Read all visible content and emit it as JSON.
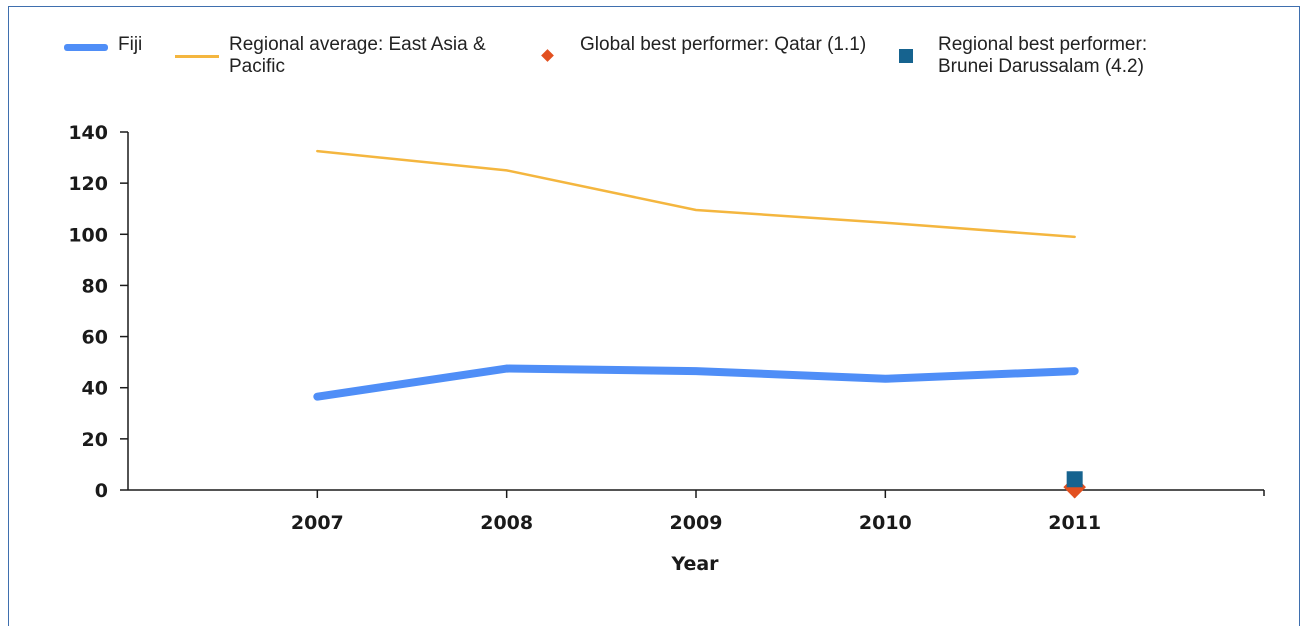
{
  "chart_data": {
    "type": "line",
    "x": [
      2007,
      2008,
      2009,
      2010,
      2011
    ],
    "xlabel": "Year",
    "ylabel": "",
    "ylim": [
      0,
      140
    ],
    "yticks": [
      0,
      20,
      40,
      60,
      80,
      100,
      120,
      140
    ],
    "xlim": [
      2006,
      2012
    ],
    "grid": false,
    "legend_position": "top",
    "series": [
      {
        "name": "Fiji",
        "type": "line",
        "color": "#4f8ef7",
        "values": [
          36.5,
          47.5,
          46.5,
          43.5,
          46.5
        ]
      },
      {
        "name": "Regional average: East Asia & Pacific",
        "type": "line",
        "color": "#f4b63f",
        "values": [
          132.5,
          125,
          109.5,
          104.5,
          99
        ]
      },
      {
        "name": "Global best performer: Qatar (1.1)",
        "type": "marker",
        "marker": "diamond",
        "color": "#e2501f",
        "x": [
          2011
        ],
        "values": [
          1.1
        ]
      },
      {
        "name": "Regional best performer: Brunei Darussalam (4.2)",
        "type": "marker",
        "marker": "square",
        "color": "#16638f",
        "x": [
          2011
        ],
        "values": [
          4.2
        ]
      }
    ]
  }
}
